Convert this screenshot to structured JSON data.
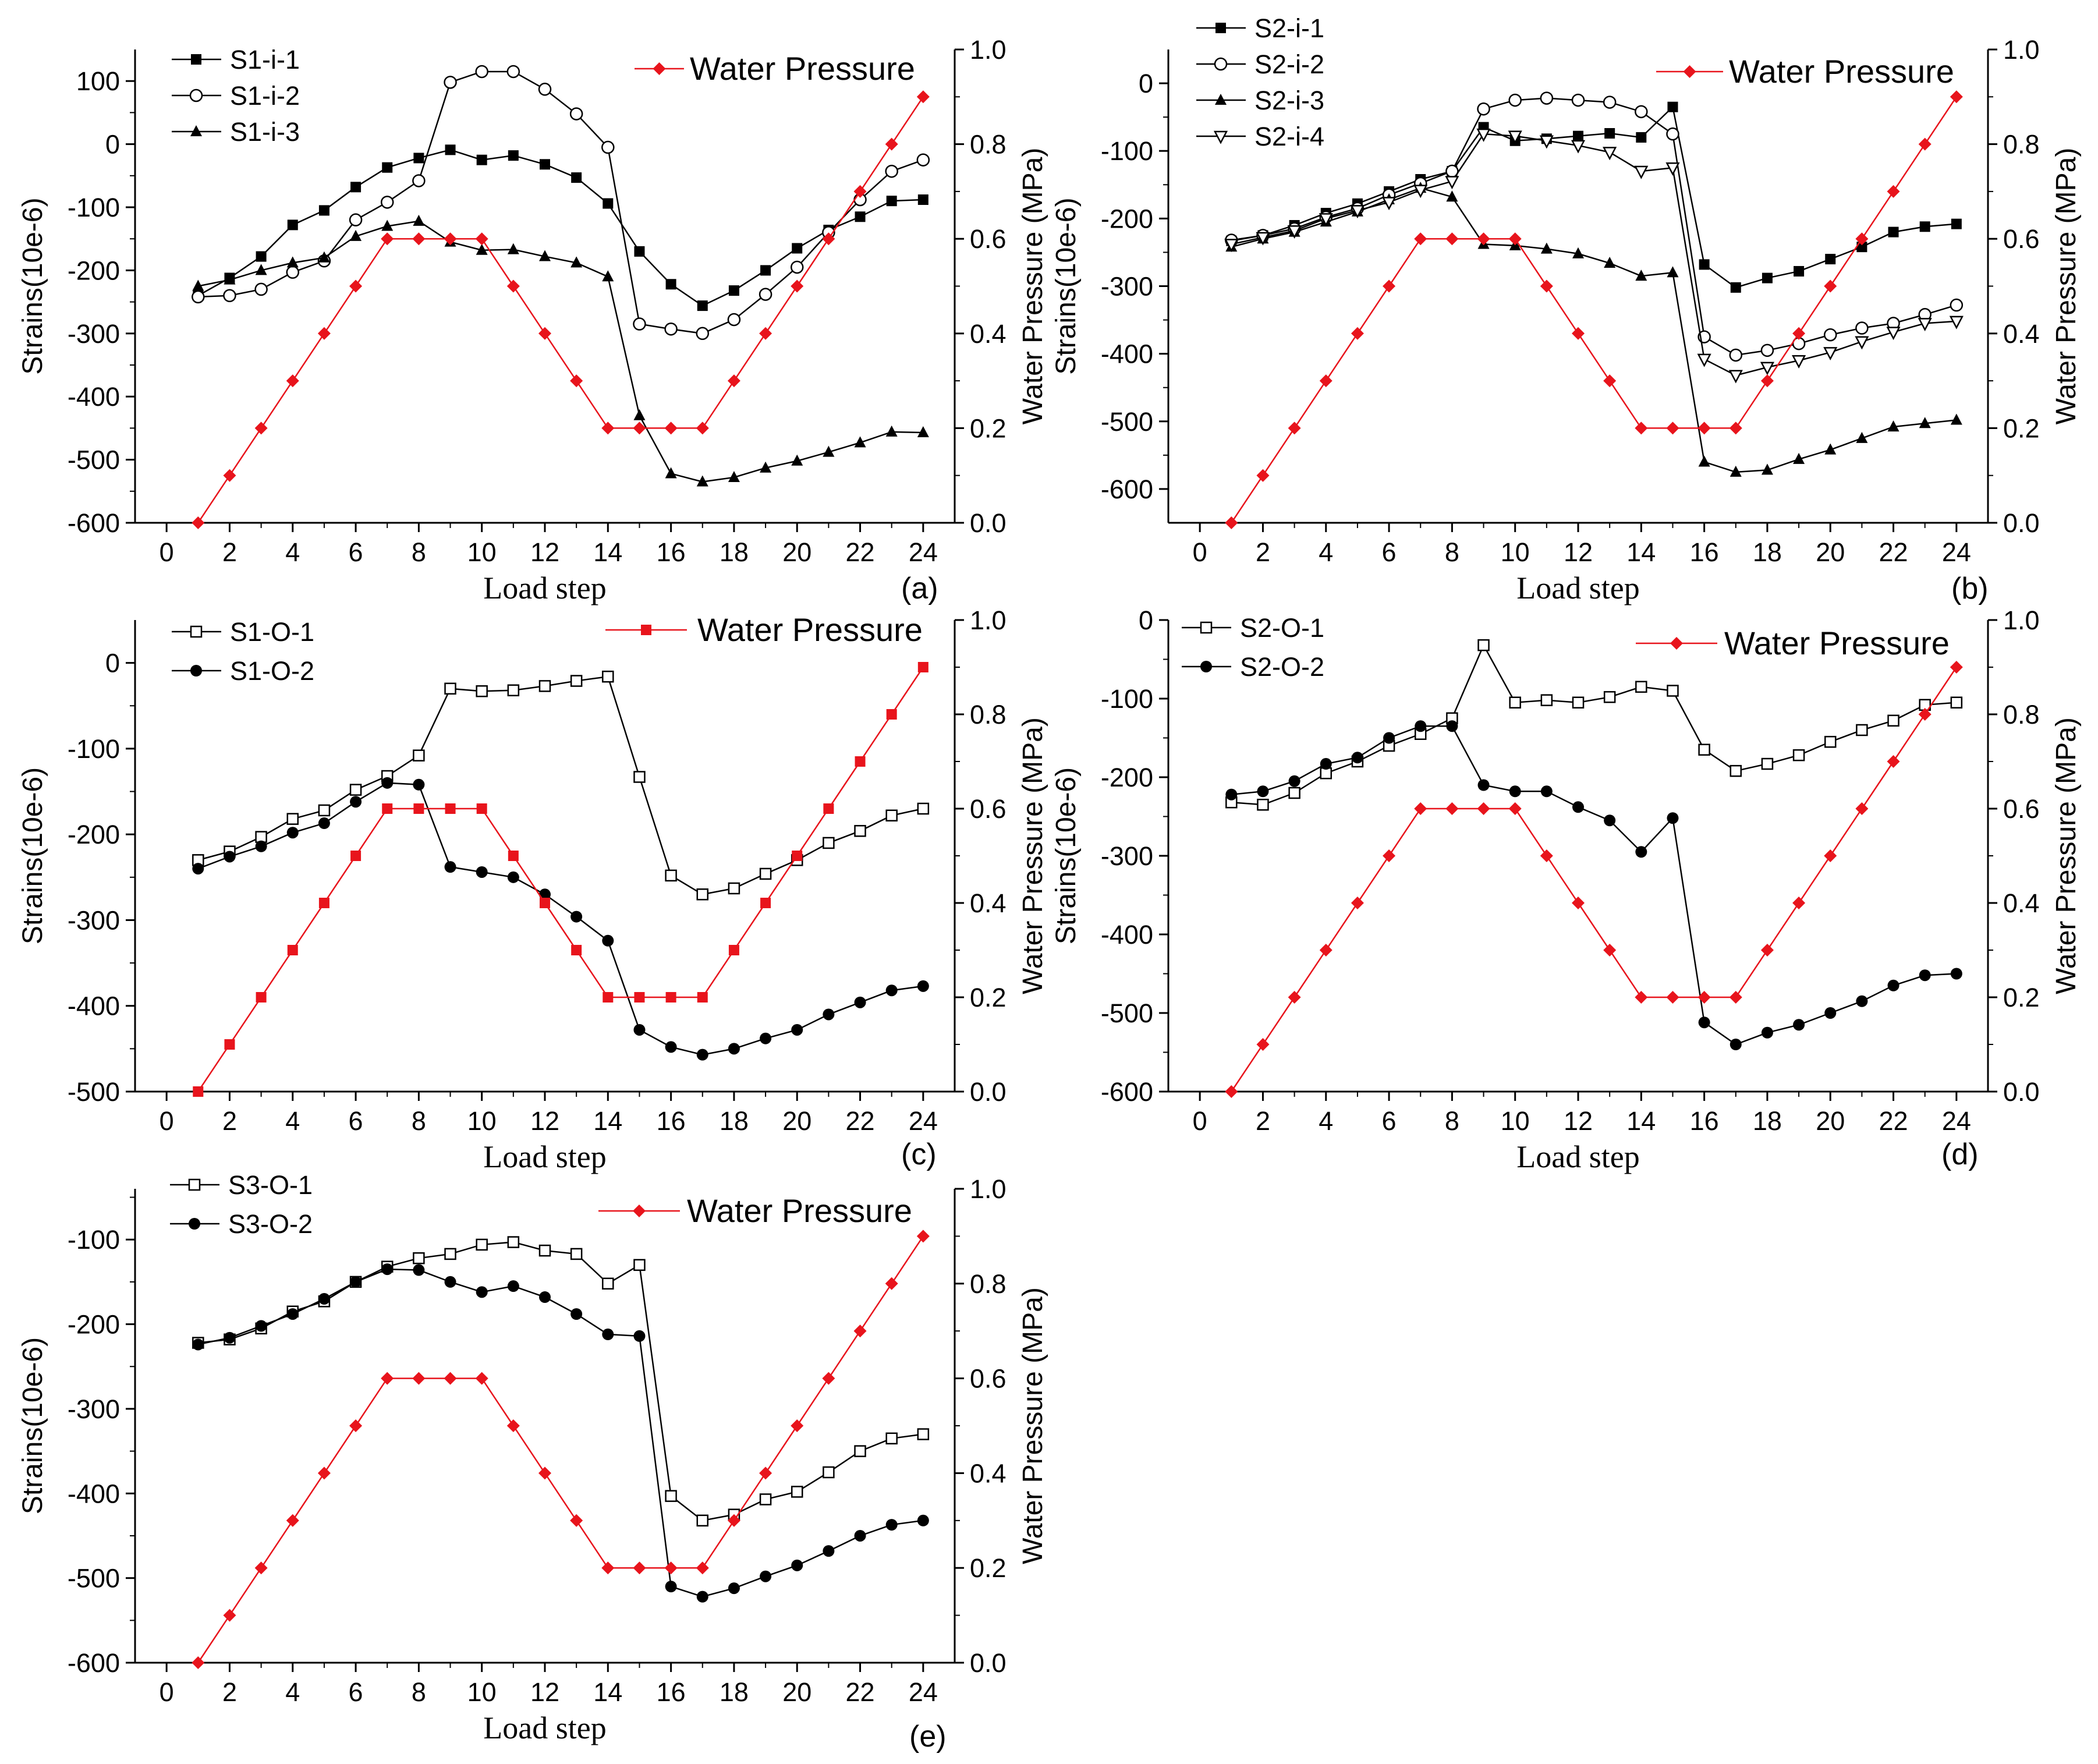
{
  "figure": {
    "x_axis_label": "Load step",
    "y_left_label": "Strains(10e-6)",
    "y_right_label": "Water Pressure (MPa)"
  },
  "chart_data": [
    {
      "id": "a",
      "type": "line",
      "panel_label": "(a)",
      "xlabel": "Load step",
      "ylabel": "Strains(10e-6)",
      "y2label": "Water Pressure (MPa)",
      "xlim": [
        -1,
        25
      ],
      "xticks": [
        "0",
        "2",
        "4",
        "6",
        "8",
        "10",
        "12",
        "14",
        "16",
        "18",
        "20",
        "22",
        "24"
      ],
      "ylim": [
        -600,
        150
      ],
      "yticks": [
        "-600",
        "-500",
        "-400",
        "-300",
        "-200",
        "-100",
        "0",
        "100"
      ],
      "y2lim": [
        0,
        1.0
      ],
      "y2ticks": [
        "0.0",
        "0.2",
        "0.4",
        "0.6",
        "0.8",
        "1.0"
      ],
      "x": [
        1,
        2,
        3,
        4,
        5,
        6,
        7,
        8,
        9,
        10,
        11,
        12,
        13,
        14,
        15,
        16,
        17,
        18,
        19,
        20,
        21,
        22,
        23,
        24
      ],
      "series": [
        {
          "name": "S1-i-1",
          "color": "#000000",
          "marker": "square-filled",
          "values": [
            -240,
            -212,
            -178,
            -128,
            -105,
            -68,
            -37,
            -22,
            -9,
            -25,
            -18,
            -32,
            -53,
            -94,
            -170,
            -222,
            -256,
            -232,
            -200,
            -165,
            -136,
            -115,
            -90,
            -88
          ]
        },
        {
          "name": "S1-i-2",
          "color": "#000000",
          "marker": "circle-open",
          "values": [
            -242,
            -240,
            -230,
            -203,
            -185,
            -120,
            -92,
            -58,
            98,
            115,
            115,
            87,
            48,
            -5,
            -285,
            -293,
            -300,
            -278,
            -238,
            -195,
            -140,
            -88,
            -43,
            -25
          ]
        },
        {
          "name": "S1-i-3",
          "color": "#000000",
          "marker": "triangle-up-filled",
          "values": [
            -225,
            -215,
            -200,
            -188,
            -180,
            -146,
            -130,
            -122,
            -155,
            -168,
            -167,
            -178,
            -188,
            -210,
            -430,
            -522,
            -535,
            -528,
            -513,
            -502,
            -488,
            -473,
            -456,
            -457
          ]
        },
        {
          "name": "Water Pressure",
          "color": "#e8141c",
          "marker": "diamond-filled",
          "axis": "right",
          "values": [
            0,
            0.1,
            0.2,
            0.3,
            0.4,
            0.5,
            0.6,
            0.6,
            0.6,
            0.6,
            0.5,
            0.4,
            0.3,
            0.2,
            0.2,
            0.2,
            0.2,
            0.3,
            0.4,
            0.5,
            0.6,
            0.7,
            0.8,
            0.9
          ]
        }
      ]
    },
    {
      "id": "b",
      "type": "line",
      "panel_label": "(b)",
      "xlabel": "Load step",
      "ylabel": "Strains(10e-6)",
      "y2label": "Water Pressure (MPa)",
      "xlim": [
        -1,
        25
      ],
      "xticks": [
        "0",
        "2",
        "4",
        "6",
        "8",
        "10",
        "12",
        "14",
        "16",
        "18",
        "20",
        "22",
        "24"
      ],
      "ylim": [
        -650,
        50
      ],
      "yticks": [
        "-600",
        "-500",
        "-400",
        "-300",
        "-200",
        "-100",
        "0"
      ],
      "y2lim": [
        0,
        1.0
      ],
      "y2ticks": [
        "0.0",
        "0.2",
        "0.4",
        "0.6",
        "0.8",
        "1.0"
      ],
      "x": [
        1,
        2,
        3,
        4,
        5,
        6,
        7,
        8,
        9,
        10,
        11,
        12,
        13,
        14,
        15,
        16,
        17,
        18,
        19,
        20,
        21,
        22,
        23,
        24
      ],
      "series": [
        {
          "name": "S2-i-1",
          "color": "#000000",
          "marker": "square-filled",
          "values": [
            -233,
            -225,
            -210,
            -192,
            -178,
            -160,
            -142,
            -130,
            -65,
            -85,
            -82,
            -78,
            -74,
            -80,
            -35,
            -268,
            -302,
            -288,
            -278,
            -260,
            -242,
            -220,
            -212,
            -208
          ]
        },
        {
          "name": "S2-i-2",
          "color": "#000000",
          "marker": "circle-open",
          "values": [
            -232,
            -225,
            -215,
            -198,
            -185,
            -165,
            -148,
            -130,
            -38,
            -25,
            -22,
            -25,
            -28,
            -42,
            -75,
            -375,
            -402,
            -395,
            -385,
            -372,
            -362,
            -355,
            -342,
            -328
          ]
        },
        {
          "name": "S2-i-3",
          "color": "#000000",
          "marker": "triangle-up-filled",
          "values": [
            -242,
            -230,
            -220,
            -205,
            -190,
            -172,
            -155,
            -168,
            -238,
            -240,
            -245,
            -252,
            -266,
            -285,
            -280,
            -560,
            -575,
            -572,
            -556,
            -542,
            -525,
            -508,
            -503,
            -498
          ]
        },
        {
          "name": "S2-i-4",
          "color": "#000000",
          "marker": "triangle-down-open",
          "values": [
            -238,
            -228,
            -218,
            -200,
            -188,
            -176,
            -158,
            -145,
            -75,
            -78,
            -85,
            -92,
            -102,
            -130,
            -125,
            -408,
            -432,
            -420,
            -410,
            -398,
            -382,
            -368,
            -355,
            -352
          ]
        },
        {
          "name": "Water Pressure",
          "color": "#e8141c",
          "marker": "diamond-filled",
          "axis": "right",
          "values": [
            0,
            0.1,
            0.2,
            0.3,
            0.4,
            0.5,
            0.6,
            0.6,
            0.6,
            0.6,
            0.5,
            0.4,
            0.3,
            0.2,
            0.2,
            0.2,
            0.2,
            0.3,
            0.4,
            0.5,
            0.6,
            0.7,
            0.8,
            0.9
          ]
        }
      ]
    },
    {
      "id": "c",
      "type": "line",
      "panel_label": "(c)",
      "xlabel": "Load step",
      "ylabel": "Strains(10e-6)",
      "y2label": "Water Pressure (MPa)",
      "xlim": [
        -1,
        25
      ],
      "xticks": [
        "0",
        "2",
        "4",
        "6",
        "8",
        "10",
        "12",
        "14",
        "16",
        "18",
        "20",
        "22",
        "24"
      ],
      "ylim": [
        -500,
        50
      ],
      "yticks": [
        "-500",
        "-400",
        "-300",
        "-200",
        "-100",
        "0"
      ],
      "y2lim": [
        0,
        1.0
      ],
      "y2ticks": [
        "0.0",
        "0.2",
        "0.4",
        "0.6",
        "0.8",
        "1.0"
      ],
      "x": [
        1,
        2,
        3,
        4,
        5,
        6,
        7,
        8,
        9,
        10,
        11,
        12,
        13,
        14,
        15,
        16,
        17,
        18,
        19,
        20,
        21,
        22,
        23,
        24
      ],
      "series": [
        {
          "name": "S1-O-1",
          "color": "#000000",
          "marker": "square-open",
          "values": [
            -230,
            -220,
            -203,
            -182,
            -172,
            -148,
            -132,
            -108,
            -30,
            -33,
            -32,
            -27,
            -21,
            -16,
            -133,
            -248,
            -270,
            -263,
            -246,
            -230,
            -210,
            -196,
            -178,
            -170
          ]
        },
        {
          "name": "S1-O-2",
          "color": "#000000",
          "marker": "circle-filled",
          "values": [
            -240,
            -226,
            -214,
            -198,
            -187,
            -162,
            -140,
            -142,
            -238,
            -244,
            -250,
            -270,
            -296,
            -324,
            -428,
            -448,
            -457,
            -450,
            -438,
            -428,
            -410,
            -396,
            -382,
            -377
          ]
        },
        {
          "name": "Water Pressure",
          "color": "#e8141c",
          "marker": "square-filled",
          "axis": "right",
          "values": [
            0,
            0.1,
            0.2,
            0.3,
            0.4,
            0.5,
            0.6,
            0.6,
            0.6,
            0.6,
            0.5,
            0.4,
            0.3,
            0.2,
            0.2,
            0.2,
            0.2,
            0.3,
            0.4,
            0.5,
            0.6,
            0.7,
            0.8,
            0.9
          ]
        }
      ]
    },
    {
      "id": "d",
      "type": "line",
      "panel_label": "(d)",
      "xlabel": "Load step",
      "ylabel": "Strains(10e-6)",
      "y2label": "Water Pressure (MPa)",
      "xlim": [
        -1,
        25
      ],
      "xticks": [
        "0",
        "2",
        "4",
        "6",
        "8",
        "10",
        "12",
        "14",
        "16",
        "18",
        "20",
        "22",
        "24"
      ],
      "ylim": [
        -600,
        0
      ],
      "yticks": [
        "-600",
        "-500",
        "-400",
        "-300",
        "-200",
        "-100",
        "0"
      ],
      "y2lim": [
        0,
        1.0
      ],
      "y2ticks": [
        "0.0",
        "0.2",
        "0.4",
        "0.6",
        "0.8",
        "1.0"
      ],
      "x": [
        1,
        2,
        3,
        4,
        5,
        6,
        7,
        8,
        9,
        10,
        11,
        12,
        13,
        14,
        15,
        16,
        17,
        18,
        19,
        20,
        21,
        22,
        23,
        24
      ],
      "series": [
        {
          "name": "S2-O-1",
          "color": "#000000",
          "marker": "square-open",
          "values": [
            -232,
            -235,
            -220,
            -195,
            -180,
            -160,
            -145,
            -125,
            -32,
            -105,
            -102,
            -105,
            -98,
            -85,
            -90,
            -165,
            -192,
            -183,
            -172,
            -155,
            -140,
            -128,
            -108,
            -105
          ]
        },
        {
          "name": "S2-O-2",
          "color": "#000000",
          "marker": "circle-filled",
          "values": [
            -222,
            -218,
            -205,
            -183,
            -175,
            -150,
            -135,
            -135,
            -210,
            -218,
            -218,
            -238,
            -255,
            -295,
            -252,
            -512,
            -540,
            -525,
            -515,
            -500,
            -485,
            -465,
            -452,
            -450
          ]
        },
        {
          "name": "Water Pressure",
          "color": "#e8141c",
          "marker": "diamond-filled",
          "axis": "right",
          "values": [
            0,
            0.1,
            0.2,
            0.3,
            0.4,
            0.5,
            0.6,
            0.6,
            0.6,
            0.6,
            0.5,
            0.4,
            0.3,
            0.2,
            0.2,
            0.2,
            0.2,
            0.3,
            0.4,
            0.5,
            0.6,
            0.7,
            0.8,
            0.9
          ]
        }
      ]
    },
    {
      "id": "e",
      "type": "line",
      "panel_label": "(e)",
      "xlabel": "Load step",
      "ylabel": "Strains(10e-6)",
      "y2label": "Water Pressure (MPa)",
      "xlim": [
        -1,
        25
      ],
      "xticks": [
        "0",
        "2",
        "4",
        "6",
        "8",
        "10",
        "12",
        "14",
        "16",
        "18",
        "20",
        "22",
        "24"
      ],
      "ylim": [
        -600,
        -40
      ],
      "yticks": [
        "-600",
        "-500",
        "-400",
        "-300",
        "-200",
        "-100"
      ],
      "y2lim": [
        0,
        1.0
      ],
      "y2ticks": [
        "0.0",
        "0.2",
        "0.4",
        "0.6",
        "0.8",
        "1.0"
      ],
      "x": [
        1,
        2,
        3,
        4,
        5,
        6,
        7,
        8,
        9,
        10,
        11,
        12,
        13,
        14,
        15,
        16,
        17,
        18,
        19,
        20,
        21,
        22,
        23,
        24
      ],
      "series": [
        {
          "name": "S3-O-1",
          "color": "#000000",
          "marker": "square-open",
          "values": [
            -222,
            -218,
            -205,
            -185,
            -173,
            -150,
            -132,
            -122,
            -117,
            -106,
            -103,
            -113,
            -117,
            -152,
            -130,
            -403,
            -432,
            -425,
            -407,
            -398,
            -375,
            -350,
            -335,
            -330
          ]
        },
        {
          "name": "S3-O-2",
          "color": "#000000",
          "marker": "circle-filled",
          "values": [
            -224,
            -216,
            -202,
            -188,
            -170,
            -150,
            -135,
            -136,
            -150,
            -162,
            -155,
            -168,
            -188,
            -212,
            -214,
            -510,
            -522,
            -512,
            -498,
            -485,
            -468,
            -450,
            -437,
            -432
          ]
        },
        {
          "name": "Water Pressure",
          "color": "#e8141c",
          "marker": "diamond-filled",
          "axis": "right",
          "values": [
            0,
            0.1,
            0.2,
            0.3,
            0.4,
            0.5,
            0.6,
            0.6,
            0.6,
            0.6,
            0.5,
            0.4,
            0.3,
            0.2,
            0.2,
            0.2,
            0.2,
            0.3,
            0.4,
            0.5,
            0.6,
            0.7,
            0.8,
            0.9
          ]
        }
      ]
    }
  ]
}
